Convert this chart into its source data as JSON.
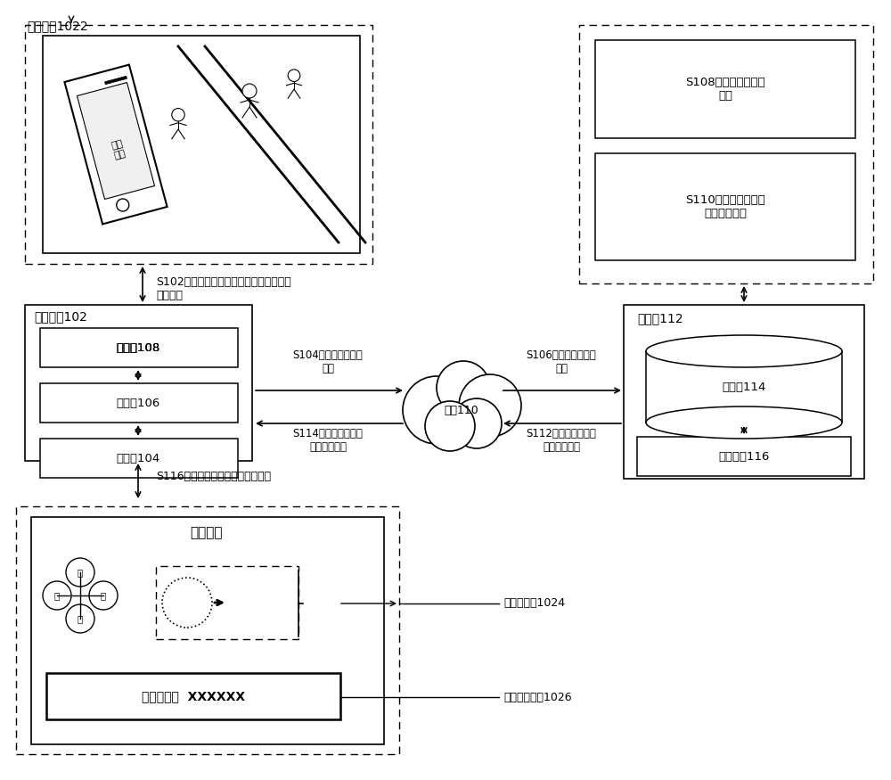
{
  "bg_color": "#ffffff",
  "fig_width": 10.0,
  "fig_height": 8.75,
  "labels": {
    "target_terminal": "目标终端1022",
    "user_device": "用户设备102",
    "display": "显示器108",
    "processor": "处理器106",
    "storage": "存储器104",
    "network": "网络110",
    "server": "服务器112",
    "database": "数据库114",
    "engine": "处理引擎116",
    "target_map": "目标地图",
    "current_loc": "当前位于：  XXXXXX",
    "s102": "S102，在触发目标定位请求后，获取定位\n参考信息",
    "s104": "S104，发送定位参考\n信息",
    "s106": "S106，发送定位参考\n信息",
    "s108": "S108，生成概略位置\n信息",
    "s110": "S110，获取校正后的\n概略位置信息",
    "s112": "S112，发送校正后的\n概略位置信息",
    "s114": "S114，发送校正后的\n概略位置信息",
    "s116": "S116，显示校正后的概略位置信息",
    "target_point": "目标定位点1024",
    "target_loc_info": "目标位置信息1026",
    "north": "北",
    "south": "南",
    "east": "东",
    "west": "西",
    "phone_text": "请求\n定位"
  },
  "colors": {
    "box_edge": "#000000",
    "arrow": "#000000",
    "text": "#000000",
    "bg": "#ffffff"
  }
}
